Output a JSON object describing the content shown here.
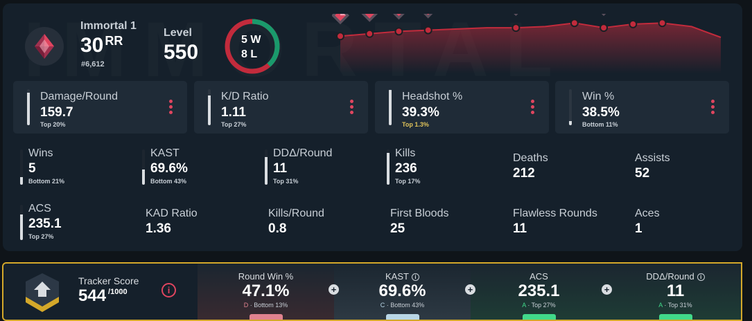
{
  "background_text": "IMMORTAL",
  "profile": {
    "rank": "Immortal 1",
    "rr_value": "30",
    "rr_unit": "RR",
    "leaderboard_position": "#6,612",
    "level_label": "Level",
    "level_value": "550",
    "wins": 5,
    "losses": 8,
    "wins_text": "5 W",
    "losses_text": "8 L"
  },
  "colors": {
    "accent_red": "#e0455f",
    "win_green": "#1a9a6c",
    "loss_red": "#c22b3c",
    "gold": "#d4a82a"
  },
  "rank_chart": {
    "points": [
      31,
      33,
      35,
      36,
      37,
      38,
      38,
      39,
      42,
      38,
      41,
      42,
      39,
      30
    ],
    "rank_markers": [
      0,
      1,
      2,
      3,
      6,
      8,
      9,
      10,
      11
    ],
    "ylim": [
      0,
      45
    ]
  },
  "cards": [
    {
      "label": "Damage/Round",
      "value": "159.7",
      "percentile": "Top 20%",
      "level": 0.9
    },
    {
      "label": "K/D Ratio",
      "value": "1.11",
      "percentile": "Top 27%",
      "level": 0.82
    },
    {
      "label": "Headshot %",
      "value": "39.3%",
      "percentile": "Top 1.3%",
      "level": 0.99
    },
    {
      "label": "Win %",
      "value": "38.5%",
      "percentile": "Bottom 11%",
      "level": 0.11
    }
  ],
  "stats_row1": [
    {
      "label": "Wins",
      "value": "5",
      "percentile": "Bottom 21%",
      "level": 0.21
    },
    {
      "label": "KAST",
      "value": "69.6%",
      "percentile": "Bottom 43%",
      "level": 0.43
    },
    {
      "label": "DDΔ/Round",
      "value": "11",
      "percentile": "Top 31%",
      "level": 0.79
    },
    {
      "label": "Kills",
      "value": "236",
      "percentile": "Top 17%",
      "level": 0.9
    },
    {
      "label": "Deaths",
      "value": "212",
      "percentile": "",
      "level": 0
    },
    {
      "label": "Assists",
      "value": "52",
      "percentile": "",
      "level": 0
    }
  ],
  "stats_row2": [
    {
      "label": "ACS",
      "value": "235.1",
      "percentile": "Top 27%",
      "level": 0.73
    },
    {
      "label": "KAD Ratio",
      "value": "1.36",
      "percentile": "",
      "level": 0
    },
    {
      "label": "Kills/Round",
      "value": "0.8",
      "percentile": "",
      "level": 0
    },
    {
      "label": "First Bloods",
      "value": "25",
      "percentile": "",
      "level": 0
    },
    {
      "label": "Flawless Rounds",
      "value": "11",
      "percentile": "",
      "level": 0
    },
    {
      "label": "Aces",
      "value": "1",
      "percentile": "",
      "level": 0
    }
  ],
  "tracker": {
    "label": "Tracker Score",
    "score": "544",
    "max": "/1000",
    "info_icon": "info-icon",
    "segments": [
      {
        "title": "Round Win %",
        "value": "47.1%",
        "grade": "D",
        "sub": "Bottom 13%",
        "bg": "#3a2a30",
        "pill": "#e0828f",
        "grade_color": "#e0828f",
        "info": false
      },
      {
        "title": "KAST",
        "value": "69.6%",
        "grade": "C",
        "sub": "Bottom 43%",
        "bg": "#2e3a44",
        "pill": "#b8d6e6",
        "grade_color": "#b8d6e6",
        "info": true
      },
      {
        "title": "ACS",
        "value": "235.1",
        "grade": "A",
        "sub": "Top 27%",
        "bg": "#1e3d35",
        "pill": "#41d98a",
        "grade_color": "#41d98a",
        "info": false
      },
      {
        "title": "DDΔ/Round",
        "value": "11",
        "grade": "A",
        "sub": "Top 31%",
        "bg": "#1e3d35",
        "pill": "#41d98a",
        "grade_color": "#41d98a",
        "info": true
      }
    ]
  }
}
